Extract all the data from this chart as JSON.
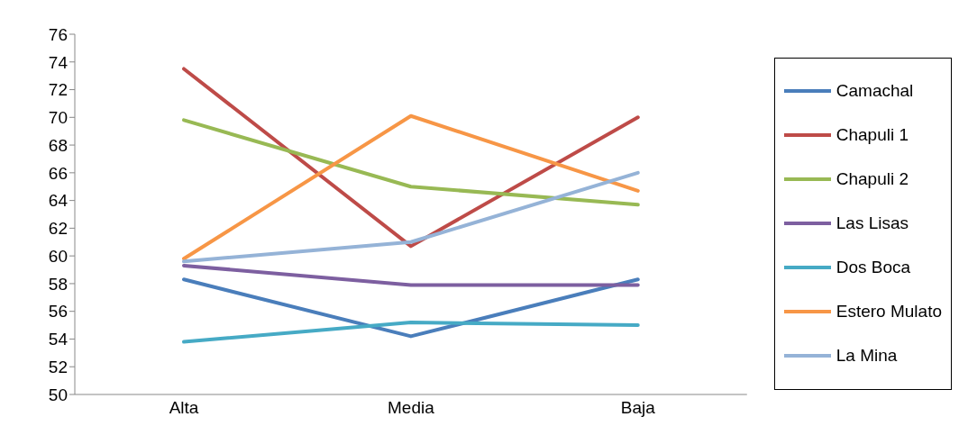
{
  "chart_data": {
    "type": "line",
    "categories": [
      "Alta",
      "Media",
      "Baja"
    ],
    "series": [
      {
        "name": "Camachal",
        "color": "#4a7ebb",
        "values": [
          58.3,
          54.2,
          58.3
        ]
      },
      {
        "name": "Chapuli 1",
        "color": "#be4b48",
        "values": [
          73.5,
          60.7,
          70.0
        ]
      },
      {
        "name": "Chapuli 2",
        "color": "#98b954",
        "values": [
          69.8,
          65.0,
          63.7
        ]
      },
      {
        "name": "Las Lisas",
        "color": "#7d5fa0",
        "values": [
          59.3,
          57.9,
          57.9
        ]
      },
      {
        "name": "Dos Boca",
        "color": "#46aac5",
        "values": [
          53.8,
          55.2,
          55.0
        ]
      },
      {
        "name": "Estero Mulato",
        "color": "#f79646",
        "values": [
          59.8,
          70.1,
          64.7
        ]
      },
      {
        "name": "La Mina",
        "color": "#95b3d7",
        "values": [
          59.6,
          61.0,
          66.0
        ]
      }
    ],
    "ylim": [
      50,
      76
    ],
    "yticks": [
      50,
      52,
      54,
      56,
      58,
      60,
      62,
      64,
      66,
      68,
      70,
      72,
      74,
      76
    ],
    "grid": false,
    "legend": "right",
    "marker": "none",
    "line_style": "solid"
  }
}
